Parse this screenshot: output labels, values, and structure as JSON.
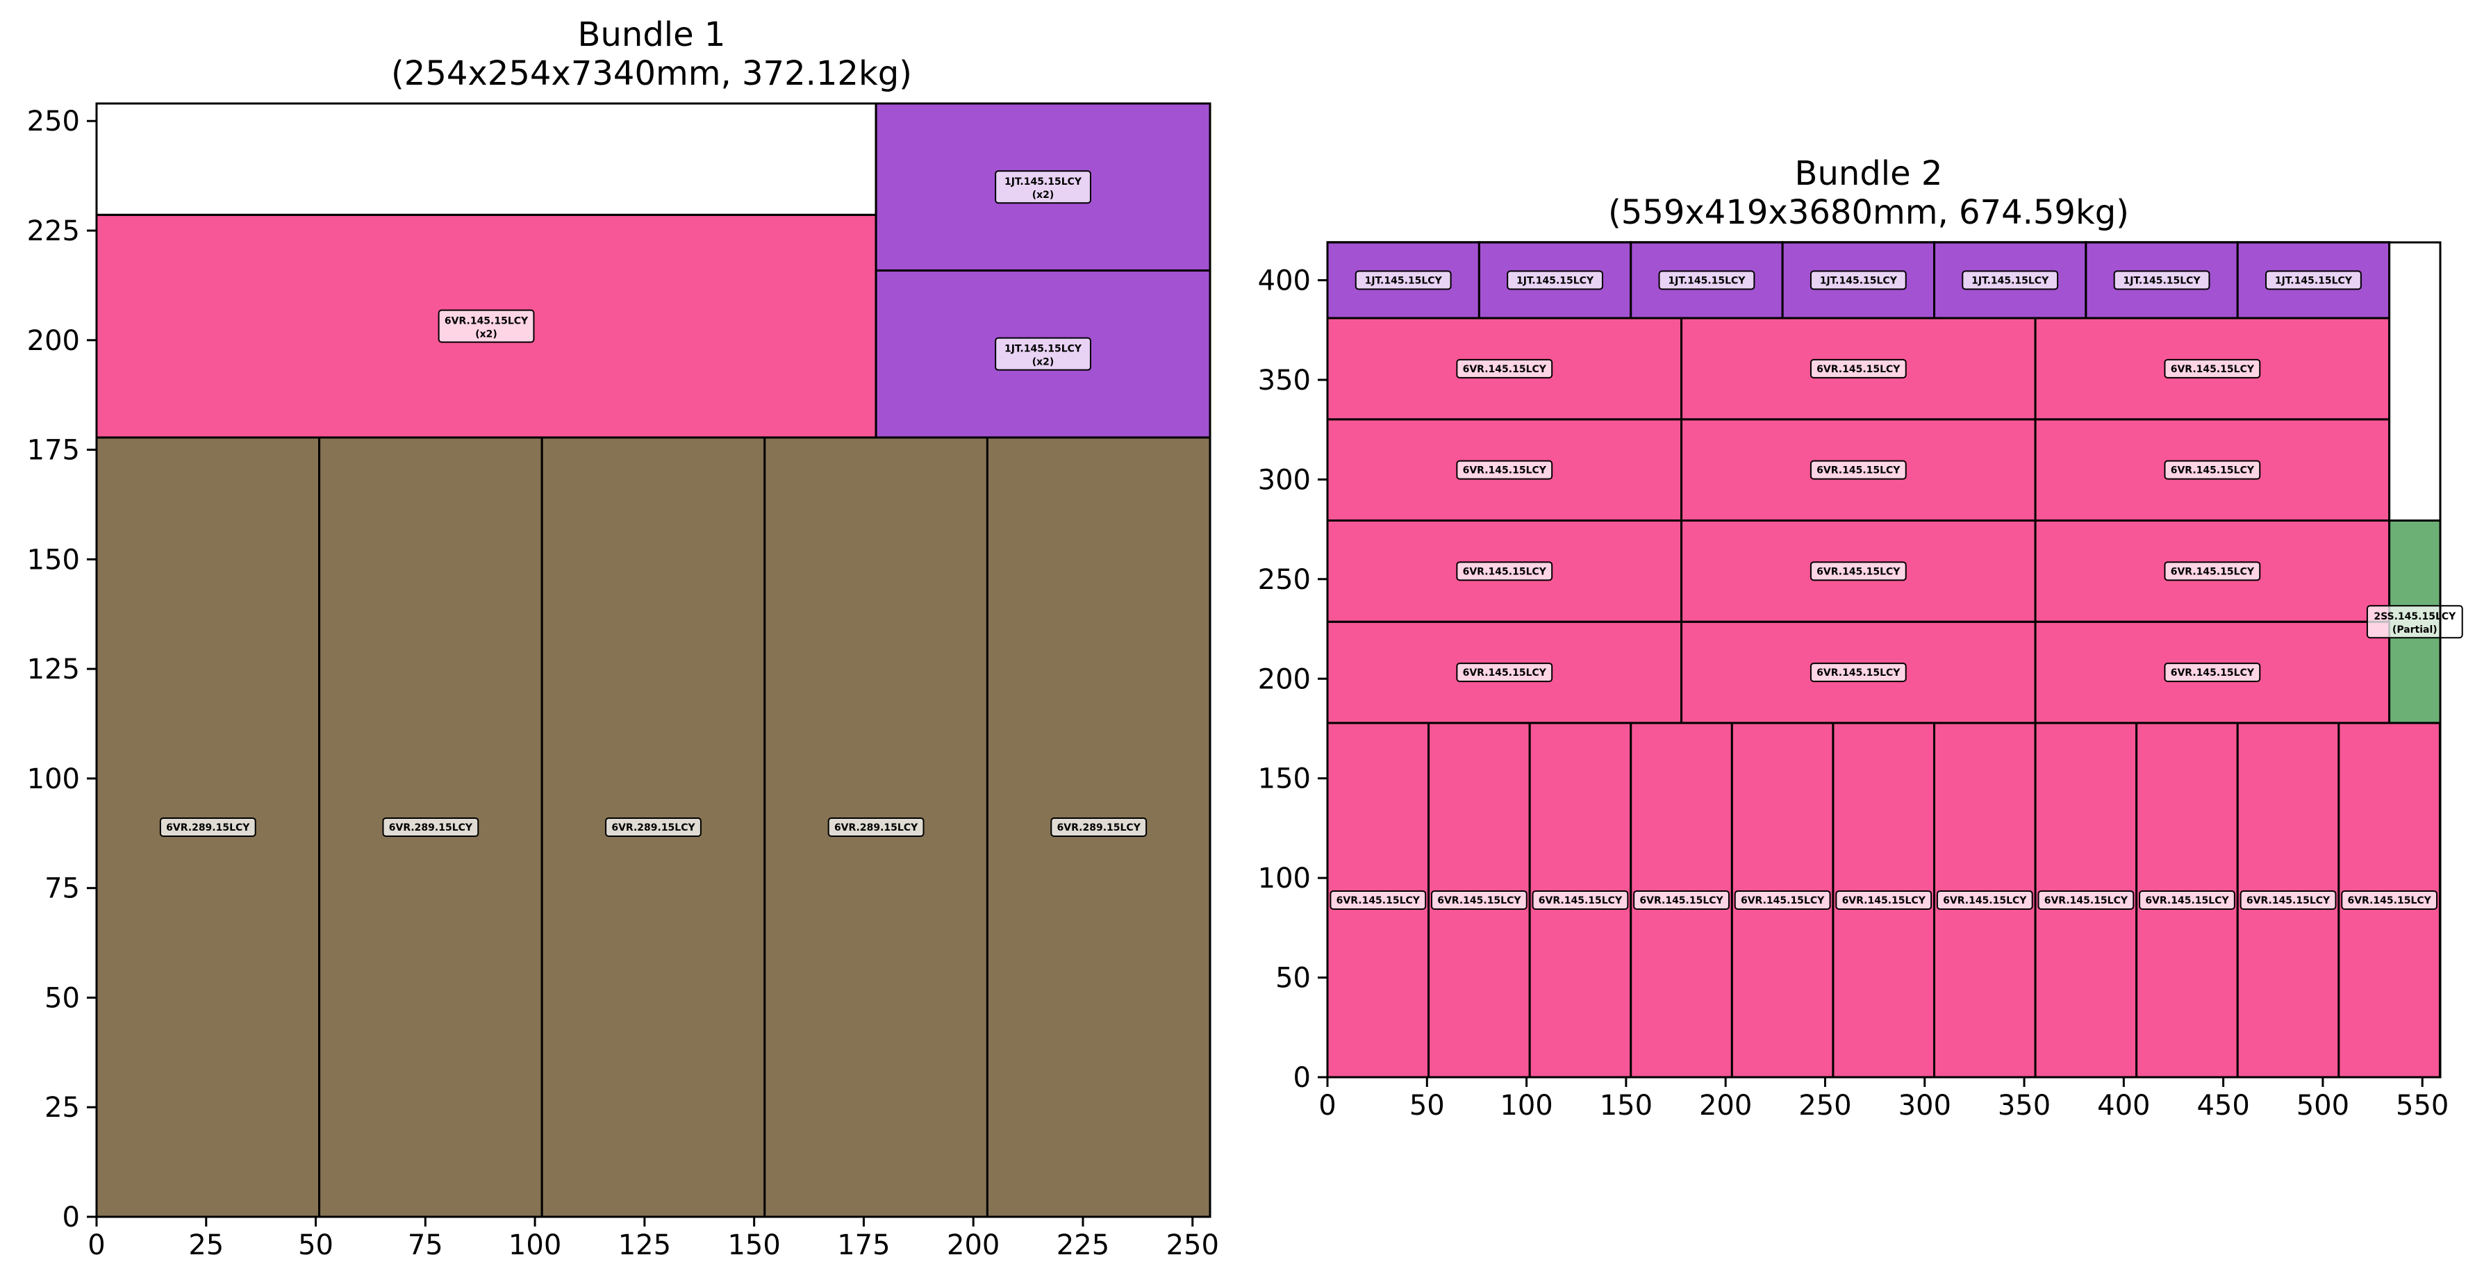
{
  "chart_data": [
    {
      "type": "rectangle-packing",
      "title_line1": "Bundle 1",
      "title_line2": "(254x254x7340mm, 372.12kg)",
      "xlim": [
        0,
        254
      ],
      "ylim": [
        0,
        254
      ],
      "xticks": [
        0,
        25,
        50,
        75,
        100,
        125,
        150,
        175,
        200,
        225,
        250
      ],
      "yticks": [
        0,
        25,
        50,
        75,
        100,
        125,
        150,
        175,
        200,
        225,
        250
      ],
      "rects": [
        {
          "x": 0,
          "y": 0,
          "w": 50.8,
          "h": 177.8,
          "color": "#857354",
          "label": "6VR.289.15LCY"
        },
        {
          "x": 50.8,
          "y": 0,
          "w": 50.8,
          "h": 177.8,
          "color": "#857354",
          "label": "6VR.289.15LCY"
        },
        {
          "x": 101.6,
          "y": 0,
          "w": 50.8,
          "h": 177.8,
          "color": "#857354",
          "label": "6VR.289.15LCY"
        },
        {
          "x": 152.4,
          "y": 0,
          "w": 50.8,
          "h": 177.8,
          "color": "#857354",
          "label": "6VR.289.15LCY"
        },
        {
          "x": 203.2,
          "y": 0,
          "w": 50.8,
          "h": 177.8,
          "color": "#857354",
          "label": "6VR.289.15LCY"
        },
        {
          "x": 0,
          "y": 177.8,
          "w": 177.8,
          "h": 50.8,
          "color": "#f75796",
          "label": "6VR.145.15LCY",
          "sublabel": "(x2)"
        },
        {
          "x": 0,
          "y": 228.6,
          "w": 177.8,
          "h": 25.4,
          "color": "#ffffff",
          "label": ""
        },
        {
          "x": 177.8,
          "y": 177.8,
          "w": 76.2,
          "h": 38.1,
          "color": "#a352d1",
          "label": "1JT.145.15LCY",
          "sublabel": "(x2)"
        },
        {
          "x": 177.8,
          "y": 215.9,
          "w": 76.2,
          "h": 38.1,
          "color": "#a352d1",
          "label": "1JT.145.15LCY",
          "sublabel": "(x2)"
        }
      ]
    },
    {
      "type": "rectangle-packing",
      "title_line1": "Bundle 2",
      "title_line2": "(559x419x3680mm, 674.59kg)",
      "xlim": [
        0,
        559
      ],
      "ylim": [
        0,
        419
      ],
      "xticks": [
        0,
        50,
        100,
        150,
        200,
        250,
        300,
        350,
        400,
        450,
        500,
        550
      ],
      "yticks": [
        0,
        50,
        100,
        150,
        200,
        250,
        300,
        350,
        400
      ],
      "rects": [
        {
          "x": 0,
          "y": 0,
          "w": 50.8,
          "h": 177.8,
          "color": "#f75796",
          "label": "6VR.145.15LCY"
        },
        {
          "x": 50.8,
          "y": 0,
          "w": 50.8,
          "h": 177.8,
          "color": "#f75796",
          "label": "6VR.145.15LCY"
        },
        {
          "x": 101.6,
          "y": 0,
          "w": 50.8,
          "h": 177.8,
          "color": "#f75796",
          "label": "6VR.145.15LCY"
        },
        {
          "x": 152.4,
          "y": 0,
          "w": 50.8,
          "h": 177.8,
          "color": "#f75796",
          "label": "6VR.145.15LCY"
        },
        {
          "x": 203.2,
          "y": 0,
          "w": 50.8,
          "h": 177.8,
          "color": "#f75796",
          "label": "6VR.145.15LCY"
        },
        {
          "x": 254,
          "y": 0,
          "w": 50.8,
          "h": 177.8,
          "color": "#f75796",
          "label": "6VR.145.15LCY"
        },
        {
          "x": 304.8,
          "y": 0,
          "w": 50.8,
          "h": 177.8,
          "color": "#f75796",
          "label": "6VR.145.15LCY"
        },
        {
          "x": 355.6,
          "y": 0,
          "w": 50.8,
          "h": 177.8,
          "color": "#f75796",
          "label": "6VR.145.15LCY"
        },
        {
          "x": 406.4,
          "y": 0,
          "w": 50.8,
          "h": 177.8,
          "color": "#f75796",
          "label": "6VR.145.15LCY"
        },
        {
          "x": 457.2,
          "y": 0,
          "w": 50.8,
          "h": 177.8,
          "color": "#f75796",
          "label": "6VR.145.15LCY"
        },
        {
          "x": 508,
          "y": 0,
          "w": 50.8,
          "h": 177.8,
          "color": "#f75796",
          "label": "6VR.145.15LCY"
        },
        {
          "x": 0,
          "y": 177.8,
          "w": 177.8,
          "h": 50.8,
          "color": "#f75796",
          "label": "6VR.145.15LCY"
        },
        {
          "x": 177.8,
          "y": 177.8,
          "w": 177.8,
          "h": 50.8,
          "color": "#f75796",
          "label": "6VR.145.15LCY"
        },
        {
          "x": 355.6,
          "y": 177.8,
          "w": 177.8,
          "h": 50.8,
          "color": "#f75796",
          "label": "6VR.145.15LCY"
        },
        {
          "x": 0,
          "y": 228.6,
          "w": 177.8,
          "h": 50.8,
          "color": "#f75796",
          "label": "6VR.145.15LCY"
        },
        {
          "x": 177.8,
          "y": 228.6,
          "w": 177.8,
          "h": 50.8,
          "color": "#f75796",
          "label": "6VR.145.15LCY"
        },
        {
          "x": 355.6,
          "y": 228.6,
          "w": 177.8,
          "h": 50.8,
          "color": "#f75796",
          "label": "6VR.145.15LCY"
        },
        {
          "x": 0,
          "y": 279.4,
          "w": 177.8,
          "h": 50.8,
          "color": "#f75796",
          "label": "6VR.145.15LCY"
        },
        {
          "x": 177.8,
          "y": 279.4,
          "w": 177.8,
          "h": 50.8,
          "color": "#f75796",
          "label": "6VR.145.15LCY"
        },
        {
          "x": 355.6,
          "y": 279.4,
          "w": 177.8,
          "h": 50.8,
          "color": "#f75796",
          "label": "6VR.145.15LCY"
        },
        {
          "x": 0,
          "y": 330.2,
          "w": 177.8,
          "h": 50.8,
          "color": "#f75796",
          "label": "6VR.145.15LCY"
        },
        {
          "x": 177.8,
          "y": 330.2,
          "w": 177.8,
          "h": 50.8,
          "color": "#f75796",
          "label": "6VR.145.15LCY"
        },
        {
          "x": 355.6,
          "y": 330.2,
          "w": 177.8,
          "h": 50.8,
          "color": "#f75796",
          "label": "6VR.145.15LCY"
        },
        {
          "x": 0,
          "y": 381,
          "w": 76.2,
          "h": 38.1,
          "color": "#a352d1",
          "label": "1JT.145.15LCY"
        },
        {
          "x": 76.2,
          "y": 381,
          "w": 76.2,
          "h": 38.1,
          "color": "#a352d1",
          "label": "1JT.145.15LCY"
        },
        {
          "x": 152.4,
          "y": 381,
          "w": 76.2,
          "h": 38.1,
          "color": "#a352d1",
          "label": "1JT.145.15LCY"
        },
        {
          "x": 228.6,
          "y": 381,
          "w": 76.2,
          "h": 38.1,
          "color": "#a352d1",
          "label": "1JT.145.15LCY"
        },
        {
          "x": 304.8,
          "y": 381,
          "w": 76.2,
          "h": 38.1,
          "color": "#a352d1",
          "label": "1JT.145.15LCY"
        },
        {
          "x": 381,
          "y": 381,
          "w": 76.2,
          "h": 38.1,
          "color": "#a352d1",
          "label": "1JT.145.15LCY"
        },
        {
          "x": 457.2,
          "y": 381,
          "w": 76.2,
          "h": 38.1,
          "color": "#a352d1",
          "label": "1JT.145.15LCY"
        },
        {
          "x": 533.4,
          "y": 177.8,
          "w": 25.6,
          "h": 101.6,
          "color": "#6cb076",
          "label": "2SS.145.15LCY",
          "sublabel": "(Partial)"
        },
        {
          "x": 533.4,
          "y": 279.4,
          "w": 25.6,
          "h": 139.6,
          "color": "#ffffff",
          "label": ""
        }
      ]
    }
  ]
}
